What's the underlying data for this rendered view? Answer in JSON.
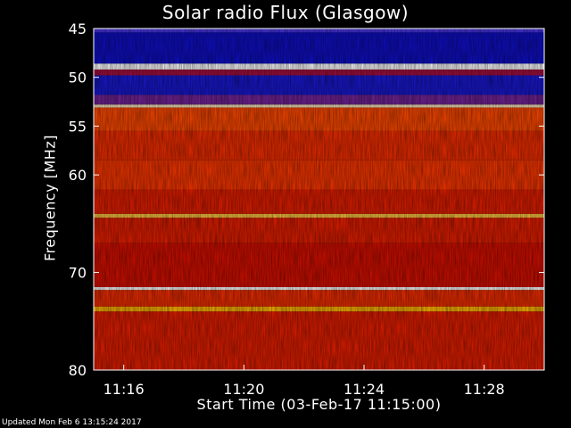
{
  "chart_data": {
    "type": "heatmap",
    "title": "Solar radio Flux (Glasgow)",
    "xlabel": "Start Time (03-Feb-17 11:15:00)",
    "ylabel": "Frequency [MHz]",
    "xlim": [
      "11:15:00",
      "11:30:00"
    ],
    "ylim": [
      45,
      80
    ],
    "y_ticks": [
      45,
      50,
      55,
      60,
      70,
      80
    ],
    "x_ticks": [
      "11:16",
      "11:20",
      "11:24",
      "11:28"
    ],
    "colormap": [
      "#0000b4",
      "#3c3cff",
      "#c80000",
      "#ff3c00",
      "#ffb400",
      "#ffffff"
    ],
    "bands": [
      {
        "from": 45.0,
        "to": 45.4,
        "intensity": 0.22
      },
      {
        "from": 45.4,
        "to": 48.6,
        "intensity": 0.05
      },
      {
        "from": 48.6,
        "to": 49.2,
        "intensity": 1.0
      },
      {
        "from": 49.2,
        "to": 49.8,
        "intensity": 0.35
      },
      {
        "from": 49.8,
        "to": 51.8,
        "intensity": 0.08
      },
      {
        "from": 51.8,
        "to": 52.8,
        "intensity": 0.28
      },
      {
        "from": 52.8,
        "to": 53.1,
        "intensity": 0.95
      },
      {
        "from": 53.1,
        "to": 55.5,
        "intensity": 0.62
      },
      {
        "from": 55.5,
        "to": 58.5,
        "intensity": 0.55
      },
      {
        "from": 58.5,
        "to": 61.5,
        "intensity": 0.58
      },
      {
        "from": 61.5,
        "to": 64.0,
        "intensity": 0.5
      },
      {
        "from": 64.0,
        "to": 64.4,
        "intensity": 0.85
      },
      {
        "from": 64.4,
        "to": 67.0,
        "intensity": 0.5
      },
      {
        "from": 67.0,
        "to": 71.5,
        "intensity": 0.45
      },
      {
        "from": 71.5,
        "to": 71.8,
        "intensity": 1.0
      },
      {
        "from": 71.8,
        "to": 73.5,
        "intensity": 0.55
      },
      {
        "from": 73.5,
        "to": 74.0,
        "intensity": 0.8
      },
      {
        "from": 74.0,
        "to": 80.0,
        "intensity": 0.5
      }
    ]
  },
  "footer": "Updated Mon Feb  6 13:15:24 2017"
}
